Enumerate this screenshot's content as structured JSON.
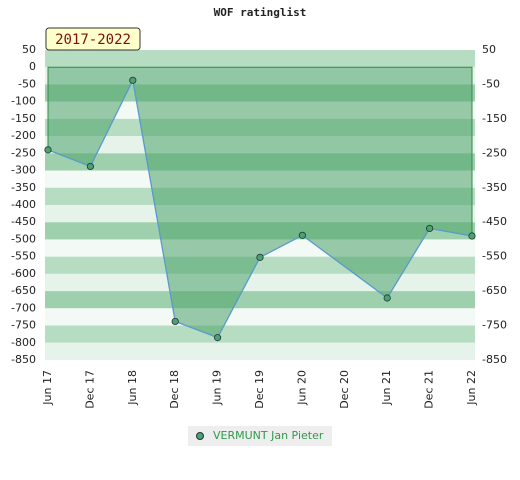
{
  "chart_data": {
    "type": "area-line",
    "title": "WOF ratinglist",
    "annotation": "2017-2022",
    "categories": [
      "Jun 17",
      "Dec 17",
      "Jun 18",
      "Dec 18",
      "Jun 19",
      "Dec 19",
      "Jun 20",
      "Dec 20",
      "Jun 21",
      "Dec 21",
      "Jun 22"
    ],
    "series": [
      {
        "name": "VERMUNT Jan Pieter",
        "color": "#4aa36a",
        "line_color": "#5b9bd5",
        "x": [
          "Jun 17",
          "Dec 17",
          "Jun 18",
          "Dec 18",
          "Jun 19",
          "Dec 19",
          "Jun 20",
          "Jun 21",
          "Dec 21",
          "Jun 22"
        ],
        "values": [
          -240,
          -288,
          -38,
          -738,
          -785,
          -552,
          -488,
          -670,
          -468,
          -490
        ]
      }
    ],
    "ylim": [
      -850,
      50
    ],
    "yticks": [
      50,
      0,
      -50,
      -100,
      -150,
      -200,
      -250,
      -300,
      -350,
      -400,
      -450,
      -500,
      -550,
      -600,
      -650,
      -700,
      -750,
      -800,
      -850
    ],
    "y2lim": [
      -850,
      50
    ],
    "y2ticks": [
      50,
      -50,
      -150,
      -250,
      -350,
      -450,
      -550,
      -650,
      -750,
      -850
    ]
  }
}
